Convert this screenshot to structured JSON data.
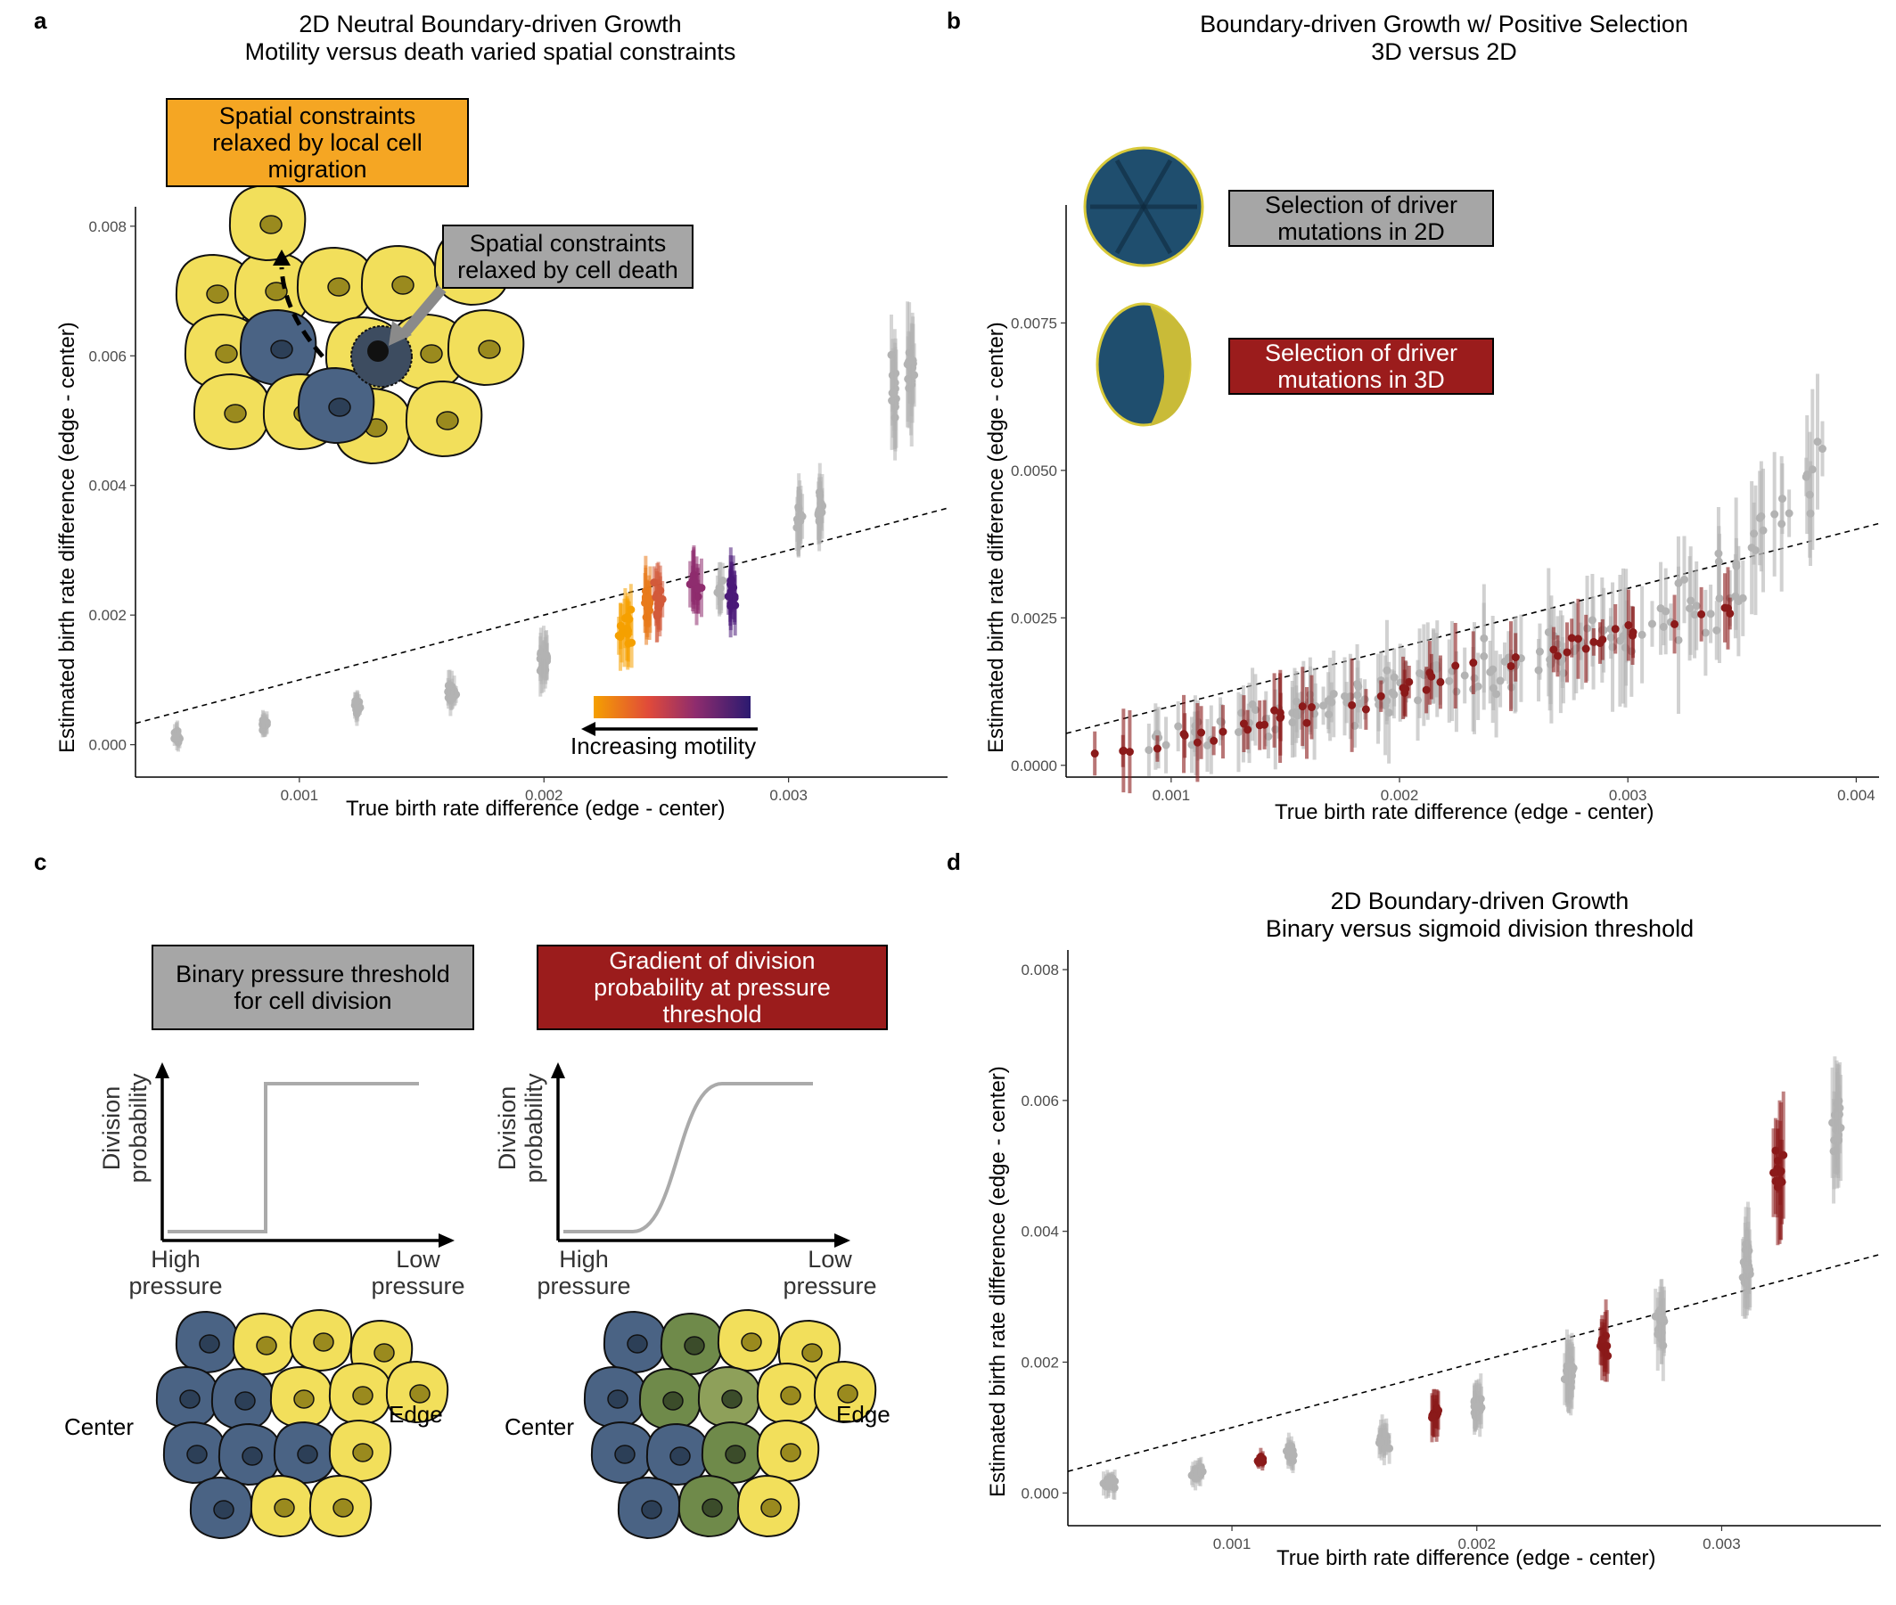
{
  "panels": {
    "a": {
      "label": "a",
      "title_line1": "2D Neutral Boundary-driven Growth",
      "title_line2": "Motility versus death varied spatial constraints",
      "box_migration": [
        "Spatial constraints",
        "relaxed by local cell",
        "migration"
      ],
      "box_death": [
        "Spatial constraints",
        "relaxed by cell death"
      ],
      "colorbar_label": "Increasing motility",
      "xlabel": "True birth rate difference (edge - center)",
      "ylabel": "Estimated birth rate difference (edge - center)",
      "xticks": [
        "0.001",
        "0.002",
        "0.003"
      ],
      "yticks": [
        "0.000",
        "0.002",
        "0.004",
        "0.006",
        "0.008"
      ]
    },
    "b": {
      "label": "b",
      "title_line1": "Boundary-driven Growth w/ Positive Selection",
      "title_line2": "3D versus 2D",
      "box_2d": [
        "Selection of driver",
        "mutations in 2D"
      ],
      "box_3d": [
        "Selection of driver",
        "mutations in 3D"
      ],
      "xlabel": "True birth rate difference (edge - center)",
      "ylabel": "Estimated birth rate difference (edge - center)",
      "xticks": [
        "0.001",
        "0.002",
        "0.003",
        "0.004"
      ],
      "yticks": [
        "0.0000",
        "0.0025",
        "0.0050",
        "0.0075"
      ]
    },
    "c": {
      "label": "c",
      "box_binary": [
        "Binary pressure threshold",
        "for cell division"
      ],
      "box_gradient": [
        "Gradient of division",
        "probability at pressure",
        "threshold"
      ],
      "axis_y": [
        "Division",
        "probability"
      ],
      "axis_x_left": [
        "High",
        "pressure"
      ],
      "axis_x_right": [
        "Low",
        "pressure"
      ],
      "center_label": "Center",
      "edge_label": "Edge"
    },
    "d": {
      "label": "d",
      "title_line1": "2D Boundary-driven Growth",
      "title_line2": "Binary versus sigmoid division threshold",
      "xlabel": "True birth rate difference (edge - center)",
      "ylabel": "Estimated birth rate difference (edge - center)",
      "xticks": [
        "0.001",
        "0.002",
        "0.003"
      ],
      "yticks": [
        "0.000",
        "0.002",
        "0.004",
        "0.006",
        "0.008"
      ]
    }
  },
  "colors": {
    "grey_points": "#b3b3b3",
    "red_points": "#8b1a1a",
    "box_orange": "#f5a623",
    "box_grey": "#a6a6a6",
    "box_red": "#9b1c1c",
    "cell_yellow": "#f2df5b",
    "cell_blue": "#4a6384",
    "cell_green": "#6f8a4a"
  },
  "chart_data": [
    {
      "type": "scatter",
      "panel": "a",
      "xlim": [
        0.00033,
        0.00365
      ],
      "ylim": [
        -0.0005,
        0.0083
      ],
      "reference_line": {
        "intercept": 0.0,
        "slope": 1.0
      },
      "series": [
        {
          "color": "#b3b3b3",
          "groups": [
            {
              "x": 0.0005,
              "y": 0.00015
            },
            {
              "x": 0.00086,
              "y": 0.0003
            },
            {
              "x": 0.00124,
              "y": 0.0006
            },
            {
              "x": 0.00162,
              "y": 0.0008
            },
            {
              "x": 0.002,
              "y": 0.0013
            },
            {
              "x": 0.00232,
              "y": 0.002
            },
            {
              "x": 0.0031,
              "y": 0.0035
            },
            {
              "x": 0.00347,
              "y": 0.0057
            }
          ]
        },
        {
          "color": "motility_gradient",
          "groups": [
            {
              "x": 0.00233,
              "y": 0.0018,
              "c": "#f5a000"
            },
            {
              "x": 0.00242,
              "y": 0.0021,
              "c": "#e87a1c"
            },
            {
              "x": 0.00247,
              "y": 0.0022,
              "c": "#d25a3a"
            },
            {
              "x": 0.00262,
              "y": 0.0025,
              "c": "#8e2c6e"
            },
            {
              "x": 0.00277,
              "y": 0.0023,
              "c": "#4b1a78"
            }
          ]
        }
      ]
    },
    {
      "type": "scatter",
      "panel": "b",
      "xlim": [
        0.00054,
        0.0041
      ],
      "ylim": [
        -0.0002,
        0.0095
      ],
      "reference_line": {
        "intercept": 0.0,
        "slope": 1.0
      },
      "series": [
        {
          "color": "#b3b3b3",
          "trend": "grey points following 2D selection, rising from ~0.0003 at x=0.0009 to ~0.006 at x=0.0039"
        },
        {
          "color": "#8b1a1a",
          "trend": "red points following 3D selection, close to identity line from x=0.00065 to x=0.0034"
        }
      ]
    },
    {
      "type": "scatter",
      "panel": "d",
      "xlim": [
        0.00033,
        0.00365
      ],
      "ylim": [
        -0.0005,
        0.0083
      ],
      "reference_line": {
        "intercept": 0.0,
        "slope": 1.0
      },
      "series": [
        {
          "color": "#b3b3b3",
          "groups": [
            {
              "x": 0.0005,
              "y": 0.00015
            },
            {
              "x": 0.00086,
              "y": 0.0003
            },
            {
              "x": 0.00124,
              "y": 0.0006
            },
            {
              "x": 0.00162,
              "y": 0.0008
            },
            {
              "x": 0.002,
              "y": 0.0013
            },
            {
              "x": 0.00238,
              "y": 0.0018
            },
            {
              "x": 0.00275,
              "y": 0.0026
            },
            {
              "x": 0.0031,
              "y": 0.0035
            },
            {
              "x": 0.00347,
              "y": 0.0057
            }
          ]
        },
        {
          "color": "#8b1a1a",
          "groups": [
            {
              "x": 0.00112,
              "y": 0.0005
            },
            {
              "x": 0.00183,
              "y": 0.0012
            },
            {
              "x": 0.00252,
              "y": 0.0023
            },
            {
              "x": 0.00323,
              "y": 0.0049
            }
          ]
        }
      ]
    }
  ]
}
